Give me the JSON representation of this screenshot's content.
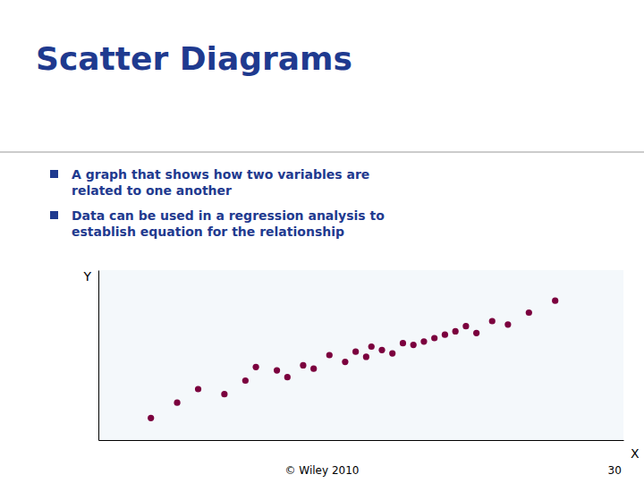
{
  "chart_data": {
    "type": "scatter",
    "title": "Scatter Diagrams",
    "annotations": [
      "A graph that shows how two variables are\nrelated to one another",
      "Data can be used in a regression analysis to\nestablish equation for the relationship",
      "© Wiley 2010",
      "30"
    ],
    "x_label": "X",
    "y_label": "Y",
    "x": [
      0.1,
      0.15,
      0.19,
      0.24,
      0.28,
      0.3,
      0.34,
      0.36,
      0.39,
      0.41,
      0.44,
      0.47,
      0.49,
      0.51,
      0.52,
      0.54,
      0.56,
      0.58,
      0.6,
      0.62,
      0.64,
      0.66,
      0.68,
      0.7,
      0.72,
      0.75,
      0.78,
      0.82,
      0.87
    ],
    "values": [
      0.13,
      0.22,
      0.3,
      0.27,
      0.35,
      0.43,
      0.41,
      0.37,
      0.44,
      0.42,
      0.5,
      0.46,
      0.52,
      0.49,
      0.55,
      0.53,
      0.51,
      0.57,
      0.56,
      0.58,
      0.6,
      0.62,
      0.64,
      0.67,
      0.63,
      0.7,
      0.68,
      0.75,
      0.82
    ],
    "color": "#7b003e",
    "xlim": [
      0,
      1
    ],
    "ylim": [
      0,
      1
    ],
    "tick_labels": false,
    "grid": false
  }
}
